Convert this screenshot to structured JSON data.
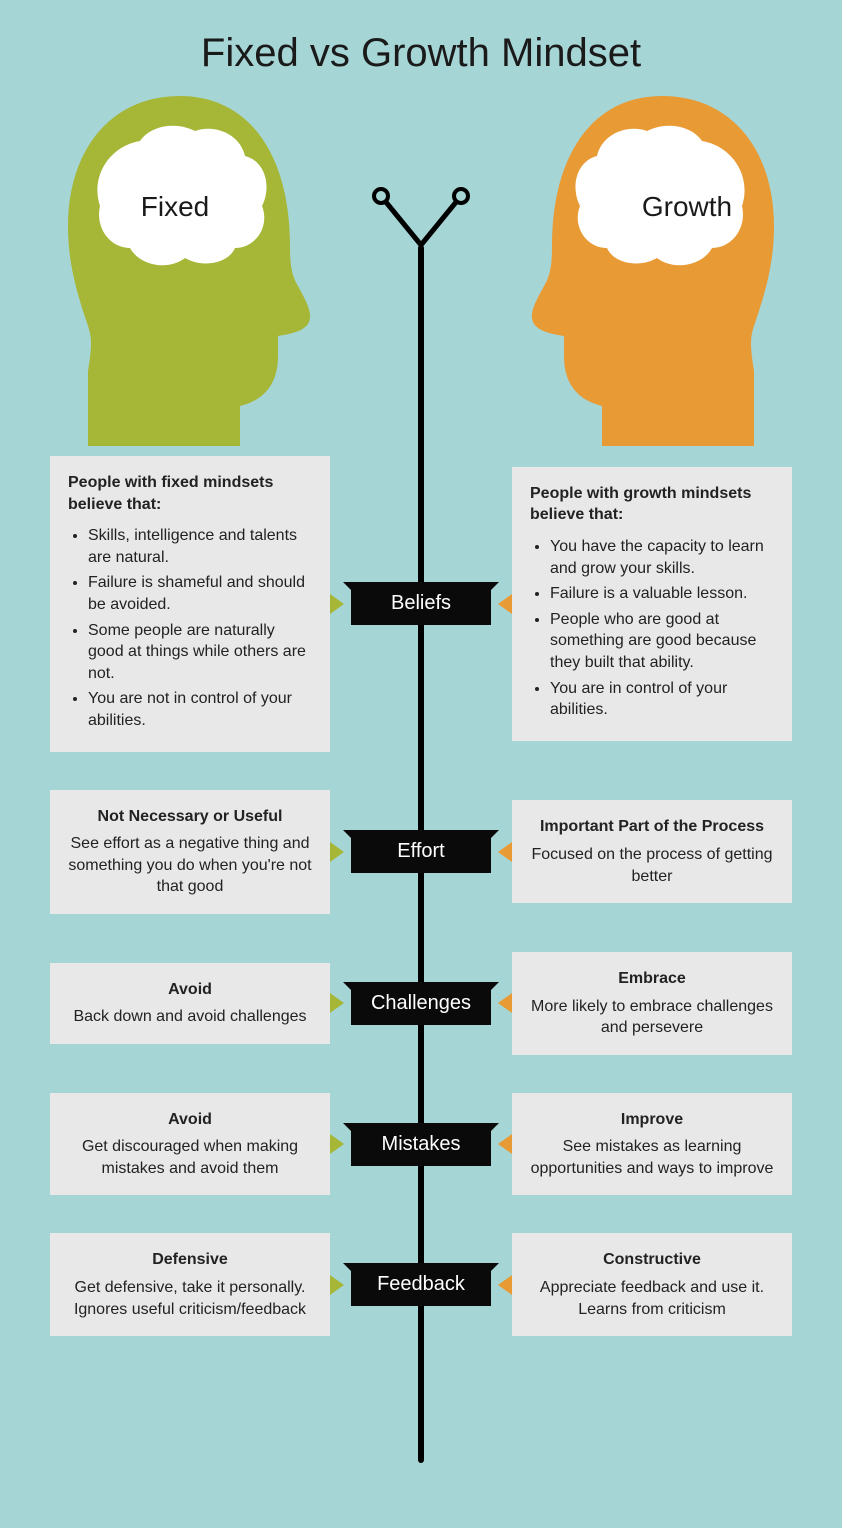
{
  "colors": {
    "background": "#a6d5d6",
    "fixed": "#a6b738",
    "growth": "#e89a34",
    "card_bg": "#e8e8e8",
    "label_bg": "#0a0a0a",
    "text": "#1a1a1a"
  },
  "title": "Fixed vs Growth Mindset",
  "fixed_label": "Fixed",
  "growth_label": "Growth",
  "categories": [
    {
      "label": "Beliefs"
    },
    {
      "label": "Effort"
    },
    {
      "label": "Challenges"
    },
    {
      "label": "Mistakes"
    },
    {
      "label": "Feedback"
    }
  ],
  "fixed": {
    "beliefs_title": "People with fixed mindsets believe that:",
    "beliefs_items": [
      "Skills, intelligence and talents are natural.",
      "Failure is shameful and should be avoided.",
      "Some people are naturally good at things while others are not.",
      "You are not in control of your abilities."
    ],
    "effort_title": "Not Necessary or Useful",
    "effort_body": "See effort as a negative thing and something you do when you're not that good",
    "challenges_title": "Avoid",
    "challenges_body": "Back down and avoid challenges",
    "mistakes_title": "Avoid",
    "mistakes_body": "Get discouraged when making mistakes and avoid them",
    "feedback_title": "Defensive",
    "feedback_body": "Get defensive, take it personally. Ignores useful criticism/feedback"
  },
  "growth": {
    "beliefs_title": "People with growth mindsets believe that:",
    "beliefs_items": [
      "You have the capacity to learn and grow your skills.",
      "Failure is a valuable lesson.",
      "People who are good at something are good because they built that ability.",
      "You are in control of your abilities."
    ],
    "effort_title": "Important Part of the Process",
    "effort_body": "Focused on the process of getting better",
    "challenges_title": "Embrace",
    "challenges_body": "More likely to embrace challenges and persevere",
    "mistakes_title": "Improve",
    "mistakes_body": "See mistakes as learning opportunities and ways to improve",
    "feedback_title": "Constructive",
    "feedback_body": "Appreciate feedback and use it. Learns from criticism"
  }
}
